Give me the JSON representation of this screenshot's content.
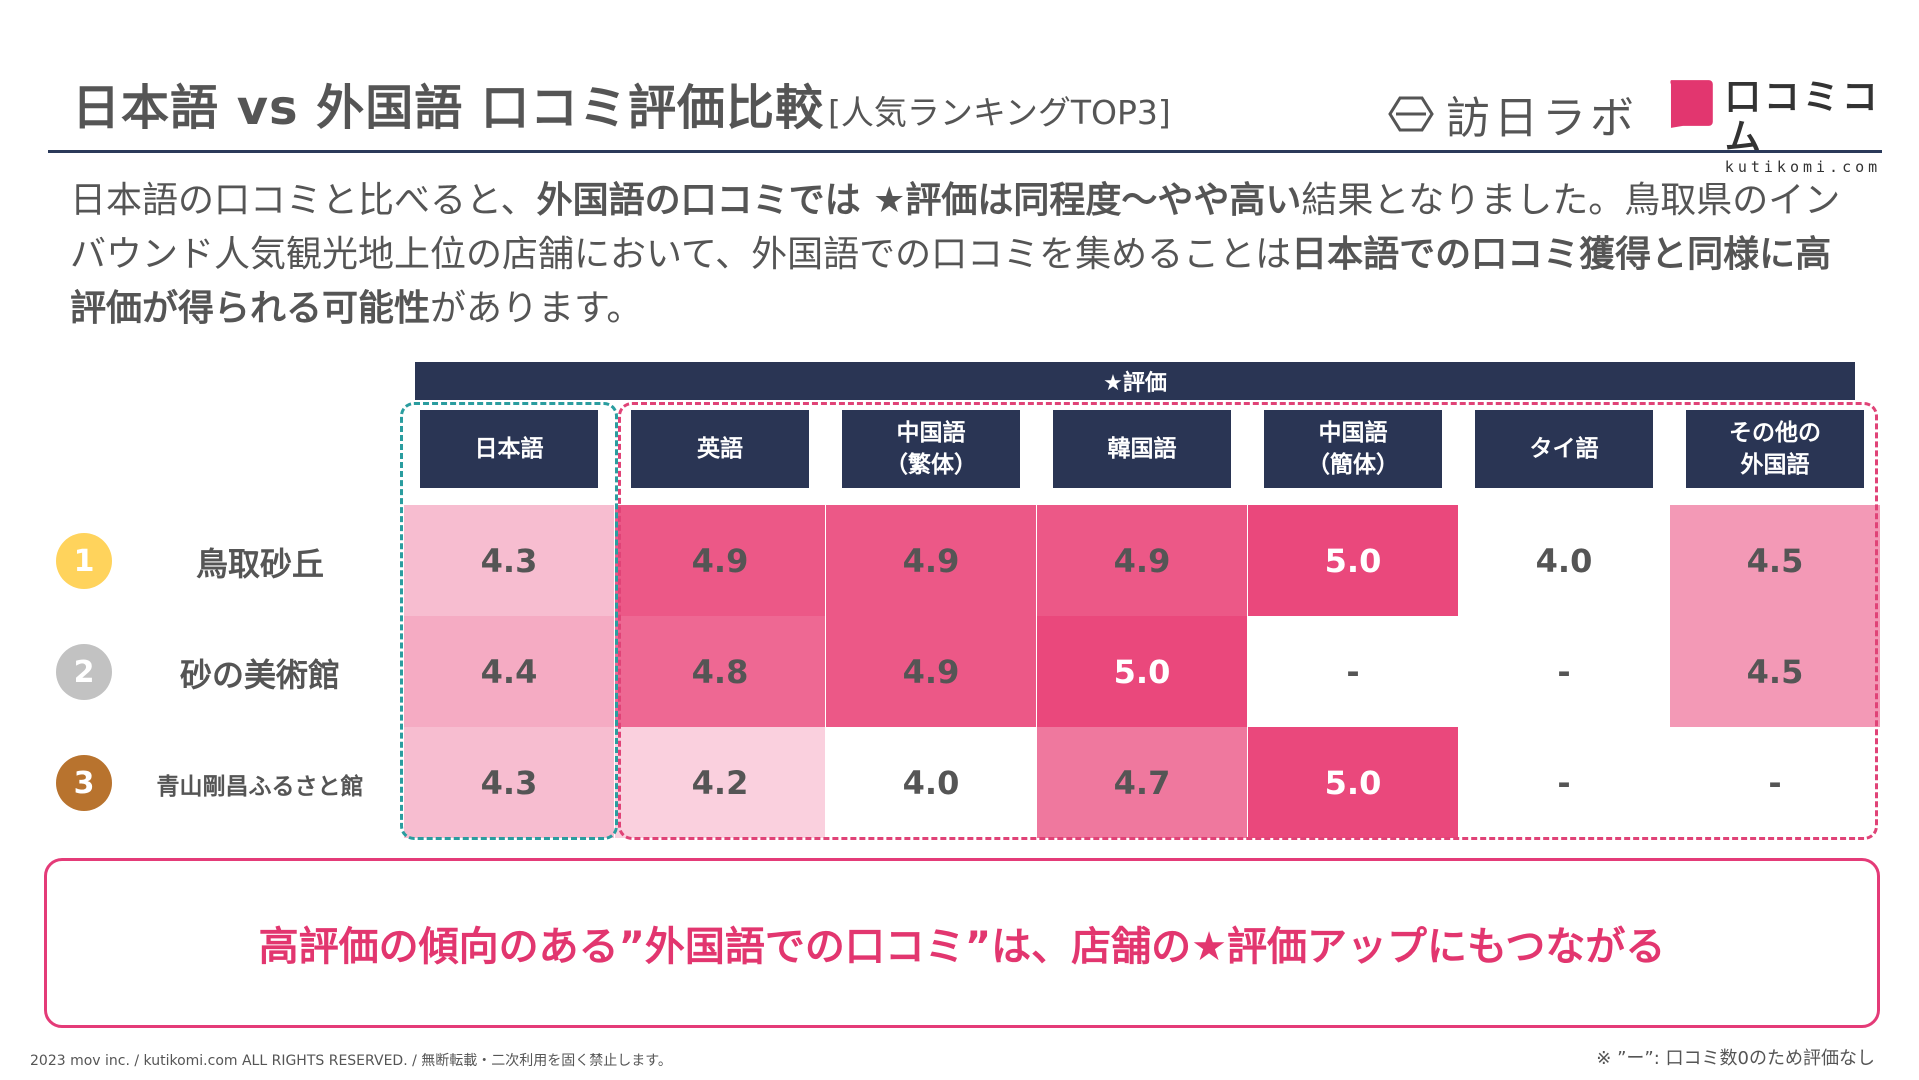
{
  "header": {
    "title_main": "日本語 vs 外国語 口コミ評価比較",
    "title_sub": "[人気ランキングTOP3]",
    "logo_houjin": "訪日ラボ",
    "logo_kutikomi_jp": "口コミコム",
    "logo_kutikomi_en": "kutikomi.com"
  },
  "intro": {
    "p1": "日本語の口コミと比べると、",
    "b1": "外国語の口コミでは ★評価は同程度〜やや高い",
    "p2": "結果となりました。鳥取県のインバウンド人気観光地上位の店舗において、外国語での口コミを集めることは",
    "b2": "日本語での口コミ獲得と同様に高評価が得られる可能性",
    "p3": "があります。"
  },
  "colors": {
    "navy": "#2a3554",
    "accent": "#e2366f",
    "teal_dash": "#2a9d9f",
    "pink_dash": "#e04377"
  },
  "chart_data": {
    "type": "table",
    "title": "★評価",
    "columns": [
      "日本語",
      "英語",
      "中国語\n（繁体）",
      "韓国語",
      "中国語\n（簡体）",
      "タイ語",
      "その他の\n外国語"
    ],
    "rows": [
      {
        "rank": "1",
        "name": "鳥取砂丘",
        "values": [
          "4.3",
          "4.9",
          "4.9",
          "4.9",
          "5.0",
          "4.0",
          "4.5"
        ]
      },
      {
        "rank": "2",
        "name": "砂の美術館",
        "values": [
          "4.4",
          "4.8",
          "4.9",
          "5.0",
          "-",
          "-",
          "4.5"
        ]
      },
      {
        "rank": "3",
        "name": "青山剛昌ふるさと館",
        "values": [
          "4.3",
          "4.2",
          "4.0",
          "4.7",
          "5.0",
          "-",
          "-"
        ]
      }
    ],
    "rank_colors": [
      "#ffd35c",
      "#c2c2c2",
      "#b8732e"
    ]
  },
  "conclusion": "高評価の傾向のある”外国語での口コミ”は、店舗の★評価アップにもつながる",
  "footer": {
    "copyright": "2023 mov inc. / kutikomi.com ALL RIGHTS RESERVED. / 無断転載・二次利用を固く禁止します。",
    "note": "※ ”ー”: 口コミ数0のため評価なし"
  }
}
